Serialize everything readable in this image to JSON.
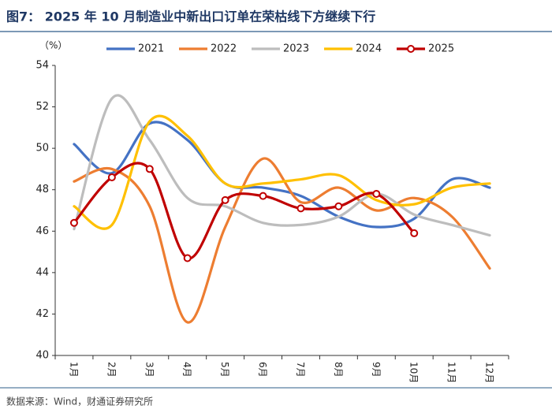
{
  "chart_data": {
    "type": "line",
    "title": "图7： 2025 年 10 月制造业中新出口订单在荣枯线下方继续下行",
    "y_label": "（%）",
    "source": "数据来源：Wind，财通证券研究所",
    "categories": [
      "1月",
      "2月",
      "3月",
      "4月",
      "5月",
      "6月",
      "7月",
      "8月",
      "9月",
      "10月",
      "11月",
      "12月"
    ],
    "series": [
      {
        "name": "2021",
        "color": "#4472c4",
        "values": [
          50.2,
          48.8,
          51.2,
          50.4,
          48.3,
          48.1,
          47.7,
          46.7,
          46.2,
          46.6,
          48.5,
          48.1
        ]
      },
      {
        "name": "2022",
        "color": "#ed7d31",
        "values": [
          48.4,
          49.0,
          47.2,
          41.6,
          46.2,
          49.5,
          47.4,
          48.1,
          47.0,
          47.6,
          46.7,
          44.2
        ]
      },
      {
        "name": "2023",
        "color": "#bdbdbd",
        "values": [
          46.1,
          52.4,
          50.4,
          47.6,
          47.2,
          46.4,
          46.3,
          46.7,
          47.8,
          46.8,
          46.3,
          45.8
        ]
      },
      {
        "name": "2024",
        "color": "#ffc000",
        "values": [
          47.2,
          46.3,
          51.3,
          50.6,
          48.3,
          48.3,
          48.5,
          48.7,
          47.5,
          47.3,
          48.1,
          48.3
        ]
      },
      {
        "name": "2025",
        "color": "#c00000",
        "markers": true,
        "values": [
          46.4,
          48.6,
          49.0,
          44.7,
          47.5,
          47.7,
          47.1,
          47.2,
          47.8,
          45.9,
          null,
          null
        ]
      }
    ],
    "ylim": [
      40,
      54
    ],
    "yticks": [
      40,
      42,
      44,
      46,
      48,
      50,
      52,
      54
    ],
    "grid": false,
    "legend": "top"
  }
}
